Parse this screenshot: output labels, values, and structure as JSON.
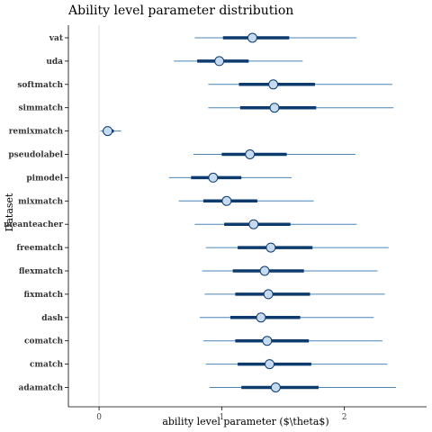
{
  "chart_data": {
    "type": "pointrange",
    "title": "Ability level parameter distribution",
    "xlabel": "ability level parameter ($\\theta$)",
    "ylabel": "Dataset",
    "xlim": [
      -0.25,
      2.67
    ],
    "xticks": [
      0,
      1,
      2
    ],
    "reference_line_x": 0,
    "colors": {
      "interval_outer": "#4a86b8",
      "interval_inner": "#0d3b6e",
      "point_fill": "#c6dbef",
      "point_stroke": "#0d3b6e",
      "reference_line": "#dddddd",
      "axis": "#000000"
    },
    "categories": [
      "vat",
      "uda",
      "softmatch",
      "simmatch",
      "remixmatch",
      "pseudolabel",
      "pimodel",
      "mixmatch",
      "meanteacher",
      "freematch",
      "flexmatch",
      "fixmatch",
      "dash",
      "comatch",
      "cmatch",
      "adamatch"
    ],
    "series": [
      {
        "category": "vat",
        "estimate": 1.25,
        "inner": [
          1.01,
          1.55
        ],
        "outer": [
          0.78,
          2.1
        ]
      },
      {
        "category": "uda",
        "estimate": 0.98,
        "inner": [
          0.8,
          1.22
        ],
        "outer": [
          0.61,
          1.66
        ]
      },
      {
        "category": "softmatch",
        "estimate": 1.42,
        "inner": [
          1.14,
          1.76
        ],
        "outer": [
          0.89,
          2.39
        ]
      },
      {
        "category": "simmatch",
        "estimate": 1.43,
        "inner": [
          1.15,
          1.77
        ],
        "outer": [
          0.89,
          2.4
        ]
      },
      {
        "category": "remixmatch",
        "estimate": 0.07,
        "inner": [
          0.03,
          0.12
        ],
        "outer": [
          0.01,
          0.18
        ]
      },
      {
        "category": "pseudolabel",
        "estimate": 1.23,
        "inner": [
          1.0,
          1.53
        ],
        "outer": [
          0.77,
          2.09
        ]
      },
      {
        "category": "pimodel",
        "estimate": 0.93,
        "inner": [
          0.75,
          1.16
        ],
        "outer": [
          0.57,
          1.57
        ]
      },
      {
        "category": "mixmatch",
        "estimate": 1.04,
        "inner": [
          0.85,
          1.29
        ],
        "outer": [
          0.65,
          1.75
        ]
      },
      {
        "category": "meanteacher",
        "estimate": 1.26,
        "inner": [
          1.02,
          1.56
        ],
        "outer": [
          0.78,
          2.1
        ]
      },
      {
        "category": "freematch",
        "estimate": 1.4,
        "inner": [
          1.13,
          1.74
        ],
        "outer": [
          0.87,
          2.36
        ]
      },
      {
        "category": "flexmatch",
        "estimate": 1.35,
        "inner": [
          1.09,
          1.67
        ],
        "outer": [
          0.84,
          2.27
        ]
      },
      {
        "category": "fixmatch",
        "estimate": 1.38,
        "inner": [
          1.11,
          1.72
        ],
        "outer": [
          0.86,
          2.33
        ]
      },
      {
        "category": "dash",
        "estimate": 1.32,
        "inner": [
          1.07,
          1.64
        ],
        "outer": [
          0.82,
          2.24
        ]
      },
      {
        "category": "comatch",
        "estimate": 1.37,
        "inner": [
          1.11,
          1.71
        ],
        "outer": [
          0.85,
          2.31
        ]
      },
      {
        "category": "cmatch",
        "estimate": 1.39,
        "inner": [
          1.13,
          1.73
        ],
        "outer": [
          0.87,
          2.35
        ]
      },
      {
        "category": "adamatch",
        "estimate": 1.44,
        "inner": [
          1.16,
          1.79
        ],
        "outer": [
          0.9,
          2.42
        ]
      }
    ]
  }
}
